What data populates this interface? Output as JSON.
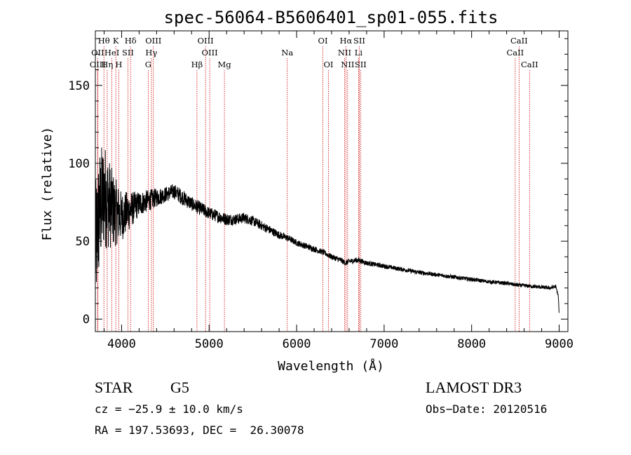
{
  "chart_data": {
    "type": "line",
    "title": "spec-56064-B5606401_sp01-055.fits",
    "xlabel": "Wavelength (Å)",
    "ylabel": "Flux (relative)",
    "xlim": [
      3700,
      9100
    ],
    "ylim": [
      -8,
      185
    ],
    "x_ticks": [
      4000,
      5000,
      6000,
      7000,
      8000,
      9000
    ],
    "x_tick_labels": [
      "4000",
      "5000",
      "6000",
      "7000",
      "8000",
      "9000"
    ],
    "y_ticks": [
      0,
      50,
      100,
      150
    ],
    "y_tick_labels": [
      "0",
      "50",
      "100",
      "150"
    ],
    "line_color": "#000000",
    "marker_color": "#cc0000",
    "spectrum": {
      "x": [
        3700,
        3750,
        3800,
        3850,
        3900,
        3950,
        4000,
        4100,
        4200,
        4300,
        4400,
        4500,
        4600,
        4700,
        4800,
        4900,
        5000,
        5100,
        5200,
        5300,
        5400,
        5500,
        5600,
        5700,
        5800,
        5900,
        6000,
        6100,
        6200,
        6300,
        6400,
        6500,
        6560,
        6600,
        6700,
        6800,
        7000,
        7200,
        7400,
        7600,
        7800,
        8000,
        8200,
        8400,
        8500,
        8600,
        8700,
        8800,
        8900,
        8960,
        8990,
        9000
      ],
      "y": [
        45,
        70,
        80,
        75,
        70,
        68,
        66,
        70,
        74,
        76,
        78,
        80,
        82,
        78,
        74,
        71,
        68,
        66,
        64,
        64,
        65,
        63,
        60,
        57,
        54,
        52,
        49,
        47,
        45,
        43,
        40,
        38,
        36,
        37,
        38,
        36,
        34,
        32,
        30,
        28.5,
        27,
        25.5,
        24,
        23,
        22,
        21.5,
        21,
        20.5,
        20,
        21,
        15,
        3
      ],
      "noise": [
        42,
        40,
        35,
        30,
        25,
        20,
        16,
        12,
        8,
        7,
        6,
        5,
        5,
        5,
        4.5,
        4.5,
        4,
        4,
        4,
        3.5,
        3.5,
        3.2,
        3,
        2.8,
        2.5,
        2.2,
        2,
        2,
        2,
        1.8,
        1.8,
        1.8,
        1.8,
        1.8,
        1.8,
        1.6,
        1.5,
        1.4,
        1.4,
        1.3,
        1.3,
        1.3,
        1.2,
        1.2,
        1.2,
        1.2,
        1.2,
        1.2,
        1.2,
        1.2,
        1.2,
        1.2
      ]
    },
    "lines": [
      {
        "label": "Hθ",
        "wave": 3798,
        "row": 0
      },
      {
        "label": "K",
        "wave": 3934,
        "row": 0
      },
      {
        "label": "Hδ",
        "wave": 4102,
        "row": 0
      },
      {
        "label": "OIII",
        "wave": 4363,
        "row": 0
      },
      {
        "label": "OIII",
        "wave": 4959,
        "row": 0
      },
      {
        "label": "OI",
        "wave": 6300,
        "row": 0
      },
      {
        "label": "Hα",
        "wave": 6563,
        "row": 0
      },
      {
        "label": "SII",
        "wave": 6716,
        "row": 0
      },
      {
        "label": "CaII",
        "wave": 8542,
        "row": 0
      },
      {
        "label": "OII",
        "wave": 3727,
        "row": 1
      },
      {
        "label": "HeI",
        "wave": 3889,
        "row": 1
      },
      {
        "label": "SII",
        "wave": 4072,
        "row": 1
      },
      {
        "label": "Hγ",
        "wave": 4340,
        "row": 1
      },
      {
        "label": "OIII",
        "wave": 5007,
        "row": 1
      },
      {
        "label": "Na",
        "wave": 5893,
        "row": 1
      },
      {
        "label": "NII",
        "wave": 6548,
        "row": 1
      },
      {
        "label": "Li",
        "wave": 6708,
        "row": 1
      },
      {
        "label": "CaII",
        "wave": 8498,
        "row": 1
      },
      {
        "label": "OIII",
        "wave": 3727,
        "row": 2
      },
      {
        "label": "Hη",
        "wave": 3835,
        "row": 2
      },
      {
        "label": "H",
        "wave": 3968,
        "row": 2
      },
      {
        "label": "G",
        "wave": 4304,
        "row": 2
      },
      {
        "label": "Hβ",
        "wave": 4861,
        "row": 2
      },
      {
        "label": "Mg",
        "wave": 5175,
        "row": 2
      },
      {
        "label": "OI",
        "wave": 6364,
        "row": 2
      },
      {
        "label": "NII",
        "wave": 6583,
        "row": 2
      },
      {
        "label": "SII",
        "wave": 6731,
        "row": 2
      },
      {
        "label": "CaII",
        "wave": 8662,
        "row": 2
      }
    ]
  },
  "info": {
    "object_class": "STAR",
    "subclass": "G5",
    "survey": "LAMOST DR3",
    "redshift": "cz = −25.9 ± 10.0 km/s",
    "obs_date": "Obs−Date: 20120516",
    "coords": "RA = 197.53693, DEC =  26.30078"
  }
}
